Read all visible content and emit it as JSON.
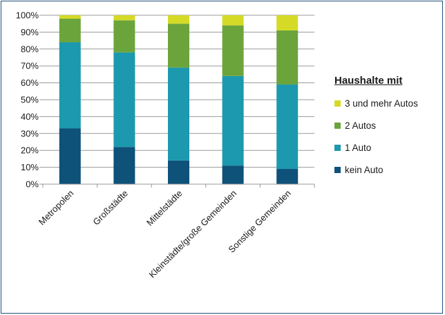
{
  "chart_data": {
    "type": "bar",
    "stacked": true,
    "categories": [
      "Metropolen",
      "Großstädte",
      "Mittelstädte",
      "Kleinstädte/große Gemeinden",
      "Sonstige Gemeinden"
    ],
    "series": [
      {
        "name": "kein Auto",
        "color": "#0e5179",
        "values": [
          33,
          22,
          14,
          11,
          9
        ]
      },
      {
        "name": "1 Auto",
        "color": "#1c99ae",
        "values": [
          51,
          56,
          55,
          53,
          50
        ]
      },
      {
        "name": "2 Autos",
        "color": "#6ca43c",
        "values": [
          14,
          19,
          26,
          30,
          32
        ]
      },
      {
        "name": "3 und mehr Autos",
        "color": "#d5da26",
        "values": [
          2,
          3,
          5,
          6,
          9
        ]
      }
    ],
    "ylim": [
      0,
      100
    ],
    "yticks": [
      "0%",
      "10%",
      "20%",
      "30%",
      "40%",
      "50%",
      "60%",
      "70%",
      "80%",
      "90%",
      "100%"
    ],
    "grid": true,
    "legend": {
      "title": "Haushalte mit",
      "placement": "right",
      "order": [
        "3 und mehr Autos",
        "2 Autos",
        "1 Auto",
        "kein Auto"
      ]
    }
  }
}
